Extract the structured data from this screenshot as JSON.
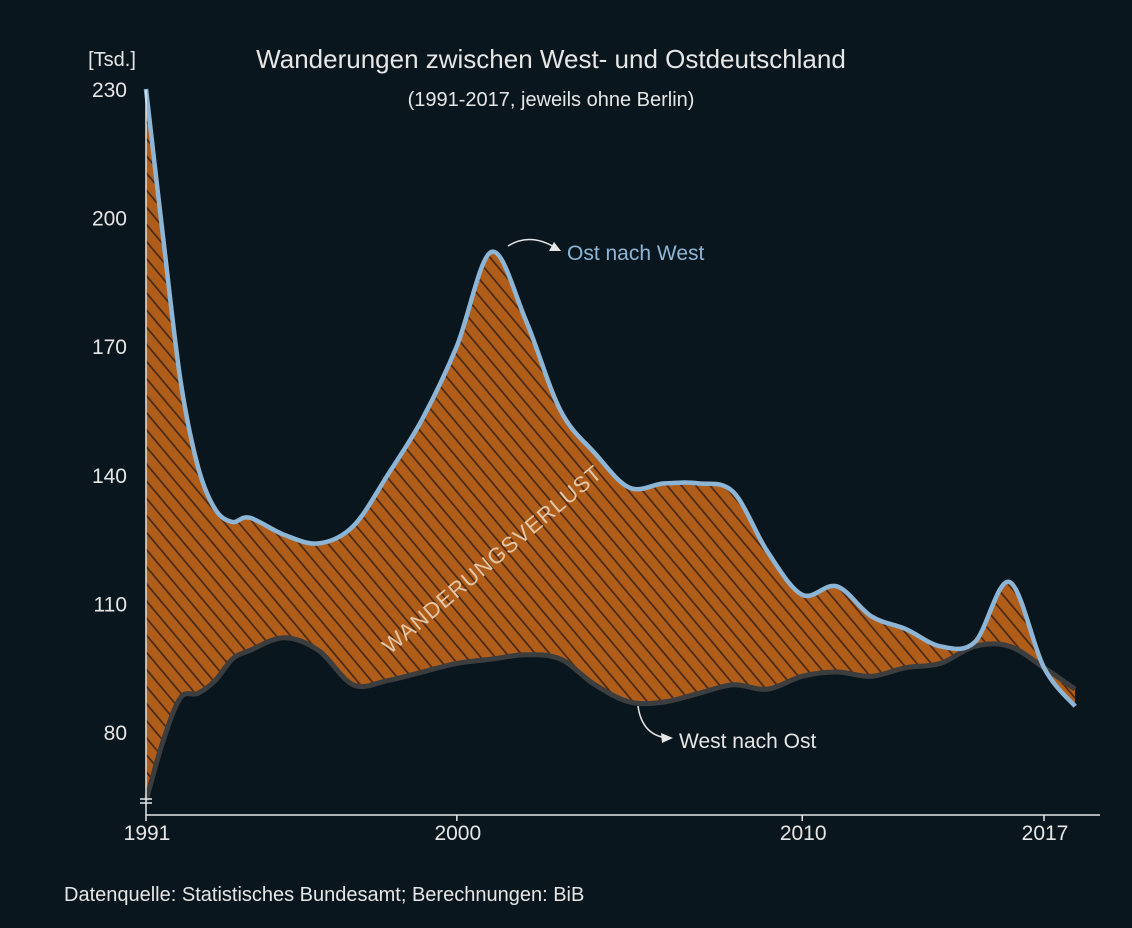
{
  "colors": {
    "background": "#0a161d",
    "ost_nach_west": "#8db6d6",
    "west_nach_ost": "#3b3d3f",
    "fill": "#b05d1a",
    "hatch": "#4a2a14"
  },
  "chart_data": {
    "type": "area",
    "title": "Wanderungen zwischen West- und Ostdeutschland",
    "subtitle": "(1991-2017, jeweils ohne Berlin)",
    "ylabel": "[Tsd.]",
    "ylim": [
      63,
      230
    ],
    "xlim": [
      1991,
      2017.9
    ],
    "y_ticks": [
      "230",
      "200",
      "170",
      "140",
      "110",
      "80"
    ],
    "x_ticks": [
      "1991",
      "2000",
      "2010",
      "2017"
    ],
    "fill_label": "WANDERUNGSVERLUST",
    "series": [
      {
        "name": "Ost nach West",
        "x": [
          1991,
          1991.5,
          1992,
          1992.5,
          1993,
          1993.5,
          1994,
          1995,
          1996,
          1997,
          1998,
          1999,
          2000,
          2001,
          2002,
          2003,
          2004,
          2005,
          2006,
          2007,
          2008,
          2009,
          2010,
          2011,
          2012,
          2013,
          2014,
          2015,
          2016,
          2017,
          2017.9
        ],
        "values": [
          230,
          195,
          162,
          142,
          132,
          129,
          130,
          126,
          124,
          128,
          140,
          153,
          170,
          192,
          176,
          155,
          145,
          137,
          138,
          138,
          136,
          122,
          112,
          114,
          107,
          104,
          100,
          101,
          115,
          95,
          86
        ]
      },
      {
        "name": "West nach Ost",
        "x": [
          1991,
          1991.5,
          1992,
          1992.5,
          1993,
          1993.5,
          1994,
          1995,
          1996,
          1997,
          1998,
          1999,
          2000,
          2001,
          2002,
          2003,
          2004,
          2005,
          2006,
          2007,
          2008,
          2009,
          2010,
          2011,
          2012,
          2013,
          2014,
          2015,
          2016,
          2017,
          2017.9
        ],
        "values": [
          64,
          78,
          88,
          89,
          92,
          97,
          99,
          102,
          99,
          91,
          92,
          94,
          96,
          97,
          98,
          97,
          91,
          87,
          87,
          89,
          91,
          90,
          93,
          94,
          93,
          95,
          96,
          100,
          100,
          95,
          90
        ]
      }
    ]
  },
  "annotations": {
    "ost_nach_west": "Ost nach West",
    "west_nach_ost": "West nach Ost"
  },
  "source": "Datenquelle: Statistisches Bundesamt; Berechnungen: BiB"
}
